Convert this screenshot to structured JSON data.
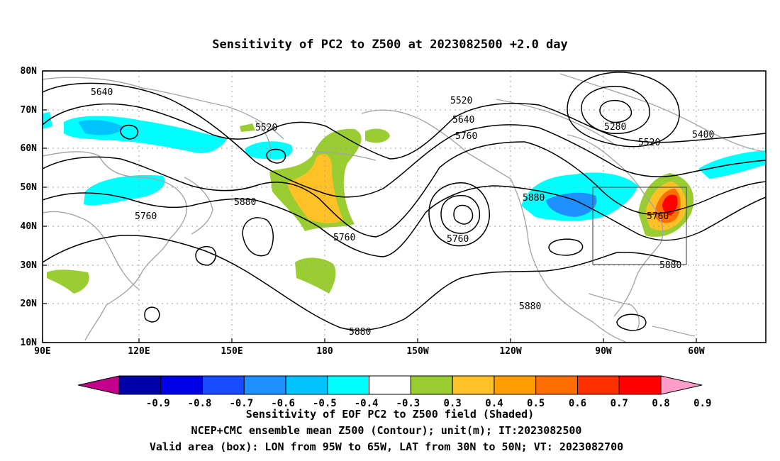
{
  "title": "Sensitivity of PC2 to Z500 at 2023082500 +2.0 day",
  "map": {
    "lat_labels": [
      "80N",
      "70N",
      "60N",
      "50N",
      "40N",
      "30N",
      "20N",
      "10N"
    ],
    "lon_labels": [
      "90E",
      "120E",
      "150E",
      "180",
      "150W",
      "120W",
      "90W",
      "60W"
    ],
    "contour_labels": [
      {
        "text": "5640"
      },
      {
        "text": "5520"
      },
      {
        "text": "5520"
      },
      {
        "text": "5640"
      },
      {
        "text": "5760"
      },
      {
        "text": "5280"
      },
      {
        "text": "5400"
      },
      {
        "text": "5520"
      },
      {
        "text": "5880"
      },
      {
        "text": "5760"
      },
      {
        "text": "5880"
      },
      {
        "text": "5760"
      },
      {
        "text": "5760"
      },
      {
        "text": "5880"
      },
      {
        "text": "5880"
      },
      {
        "text": "5880"
      },
      {
        "text": "5760"
      }
    ]
  },
  "colorbar": {
    "labels": [
      "-0.9",
      "-0.8",
      "-0.7",
      "-0.6",
      "-0.5",
      "-0.4",
      "-0.3",
      "0.3",
      "0.4",
      "0.5",
      "0.6",
      "0.7",
      "0.8",
      "0.9"
    ],
    "colors": [
      "#c2008c",
      "#0000a8",
      "#0000e6",
      "#1a4cff",
      "#1e90ff",
      "#00c3ff",
      "#00ffff",
      "#ffffff",
      "#9acd32",
      "#ffc125",
      "#ff9e00",
      "#ff6e00",
      "#ff3000",
      "#ff0000",
      "#ff9ec8"
    ]
  },
  "captions": [
    "Sensitivity of EOF PC2 to Z500 field (Shaded)",
    "NCEP+CMC ensemble mean Z500 (Contour); unit(m); IT:2023082500",
    "Valid area (box): LON from 95W to 65W, LAT from 30N to 50N; VT: 2023082700"
  ]
}
